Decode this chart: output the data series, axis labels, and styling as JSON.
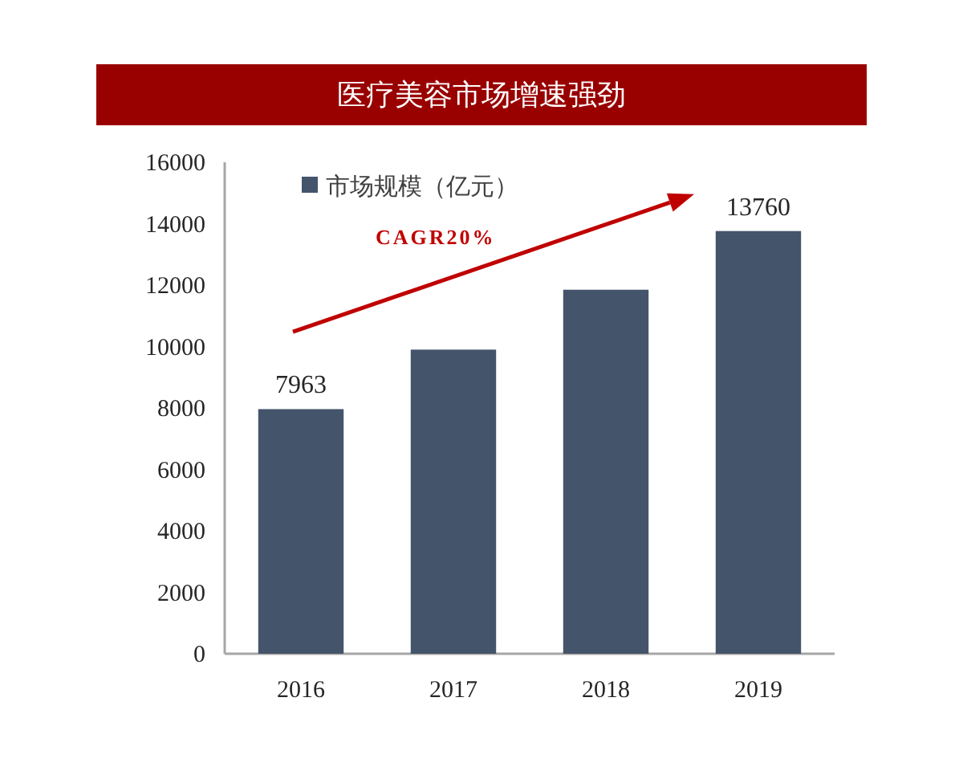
{
  "chart_data": {
    "type": "bar",
    "title": "医疗美容市场增速强劲",
    "categories": [
      "2016",
      "2017",
      "2018",
      "2019"
    ],
    "series": [
      {
        "name": "市场规模（亿元）",
        "color": "#44546a",
        "values": [
          7963,
          9900,
          11850,
          13760
        ],
        "value_labels": [
          "7963",
          null,
          null,
          "13760"
        ]
      }
    ],
    "ylim": [
      0,
      16000
    ],
    "yticks": [
      0,
      2000,
      4000,
      6000,
      8000,
      10000,
      12000,
      14000,
      16000
    ],
    "legend": "top left",
    "grid": false,
    "annotations": [
      "CAGR20%"
    ]
  }
}
